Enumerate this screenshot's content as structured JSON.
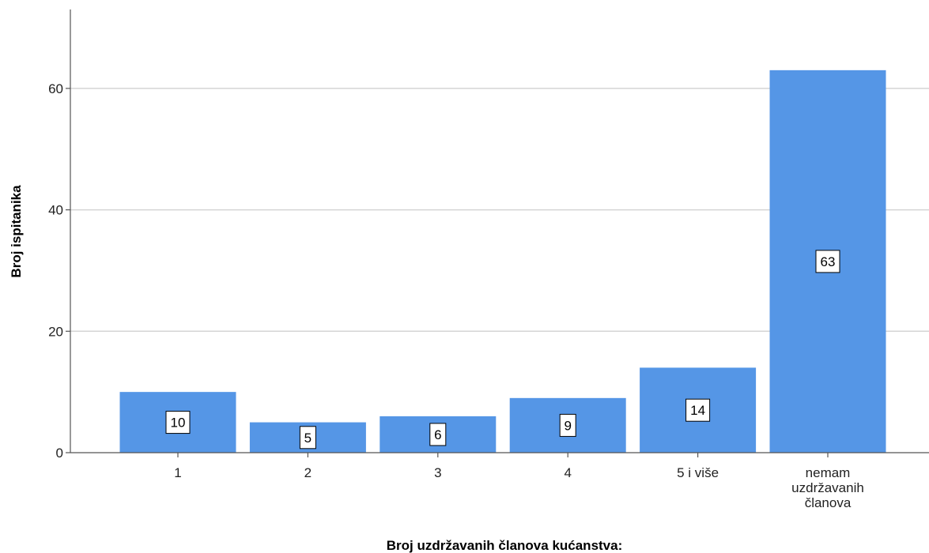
{
  "chart_data": {
    "type": "bar",
    "categories": [
      "1",
      "2",
      "3",
      "4",
      "5 i više",
      "nemam uzdržavanih članova"
    ],
    "category_label_lines": [
      [
        "1"
      ],
      [
        "2"
      ],
      [
        "3"
      ],
      [
        "4"
      ],
      [
        "5 i više"
      ],
      [
        "nemam",
        "uzdržavanih",
        "članova"
      ]
    ],
    "values": [
      10,
      5,
      6,
      9,
      14,
      63
    ],
    "data_labels": [
      "10",
      "5",
      "6",
      "9",
      "14",
      "63"
    ],
    "title": "",
    "xlabel": "Broj uzdržavanih članova kućanstva:",
    "ylabel": "Broj ispitanika",
    "ylim": [
      0,
      73
    ],
    "yticks": [
      0,
      20,
      40,
      60
    ],
    "ytick_labels": [
      "0",
      "20",
      "40",
      "60"
    ],
    "grid": true,
    "legend": "none",
    "colors": {
      "bar": "#5596e6",
      "grid": "#d4d4d4",
      "axis": "#555555",
      "label_box_fill": "#ffffff",
      "label_box_stroke": "#000000"
    }
  }
}
